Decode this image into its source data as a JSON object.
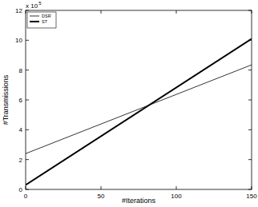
{
  "chart_data": {
    "type": "line",
    "x_label": "#Iterations",
    "y_label": "#Transmissions",
    "y_scale_text": "x 10",
    "y_scale_exponent": "5",
    "x": [
      0,
      150
    ],
    "series": [
      {
        "name": "DSR",
        "color": "#000000",
        "line_style": "solid",
        "values": [
          2.4,
          8.35
        ]
      },
      {
        "name": "ST",
        "color": "#000000",
        "line_style": "solid",
        "values": [
          0.3,
          10.1
        ]
      }
    ],
    "xlim": [
      0,
      150
    ],
    "xticks": [
      0,
      50,
      100,
      150
    ],
    "ylim": [
      0,
      12
    ],
    "yticks": [
      0,
      2,
      4,
      6,
      8,
      10,
      12
    ],
    "grid": false,
    "legend": "upper left"
  }
}
